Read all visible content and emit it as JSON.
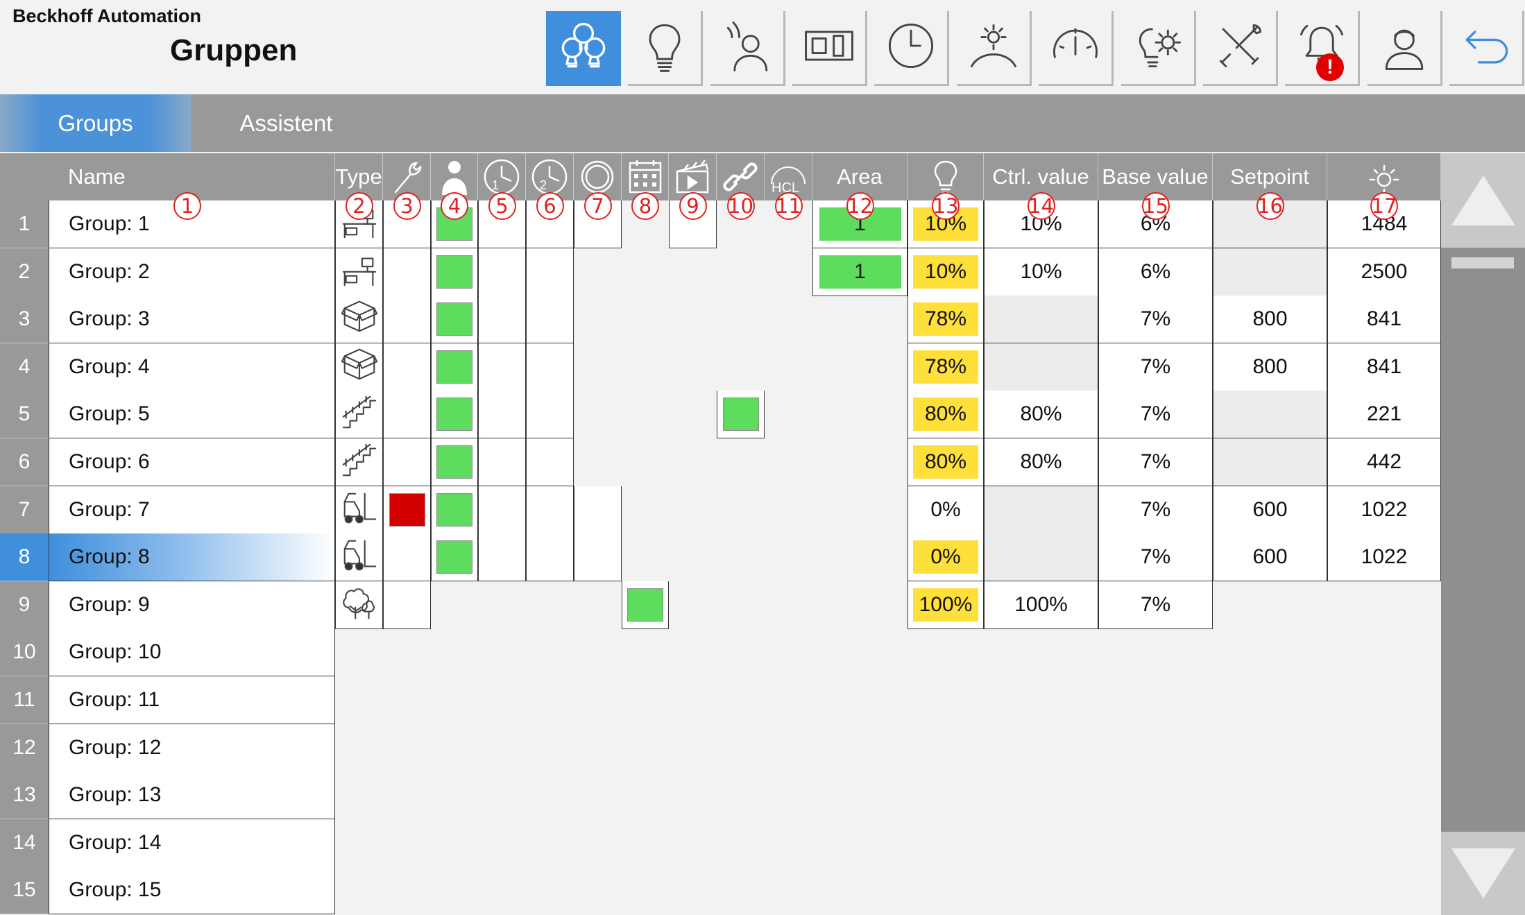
{
  "header": {
    "brand": "Beckhoff Automation",
    "title": "Gruppen"
  },
  "toolbar": [
    {
      "icon": "groups-bulbs-icon",
      "active": true
    },
    {
      "icon": "bulb-icon"
    },
    {
      "icon": "presence-person-icon"
    },
    {
      "icon": "switch-panel-icon"
    },
    {
      "icon": "clock-icon"
    },
    {
      "icon": "daylight-icon"
    },
    {
      "icon": "gauge-icon"
    },
    {
      "icon": "bulb-gear-icon"
    },
    {
      "icon": "tools-icon"
    },
    {
      "icon": "alarm-bell-icon",
      "alert": "!"
    },
    {
      "icon": "user-icon"
    },
    {
      "icon": "back-arrow-icon"
    }
  ],
  "tabs": [
    {
      "label": "Groups",
      "active": true
    },
    {
      "label": "Assistent"
    }
  ],
  "columns": {
    "name": "Name",
    "type": "Type",
    "hcl": "HCL",
    "area": "Area",
    "ctrl": "Ctrl. value",
    "base": "Base value",
    "setpoint": "Setpoint"
  },
  "column_badges": [
    "1",
    "2",
    "3",
    "4",
    "5",
    "6",
    "7",
    "8",
    "9",
    "10",
    "11",
    "12",
    "13",
    "14",
    "15",
    "16",
    "17"
  ],
  "rows": [
    {
      "num": "1",
      "name": "Group: 1",
      "type": "desk-icon",
      "area": "1",
      "bulb": "10%",
      "ctrl": "10%",
      "base": "6%",
      "setpoint": "",
      "lux": "1484"
    },
    {
      "num": "2",
      "name": "Group: 2",
      "type": "desk-icon",
      "area": "1",
      "bulb": "10%",
      "ctrl": "10%",
      "base": "6%",
      "setpoint": "",
      "lux": "2500"
    },
    {
      "num": "3",
      "name": "Group: 3",
      "type": "box-icon",
      "area": "",
      "bulb": "78%",
      "ctrl": "",
      "base": "7%",
      "setpoint": "800",
      "lux": "841"
    },
    {
      "num": "4",
      "name": "Group: 4",
      "type": "box-icon",
      "area": "",
      "bulb": "78%",
      "ctrl": "",
      "base": "7%",
      "setpoint": "800",
      "lux": "841"
    },
    {
      "num": "5",
      "name": "Group: 5",
      "type": "stairs-icon",
      "area": "",
      "bulb": "80%",
      "ctrl": "80%",
      "base": "7%",
      "setpoint": "",
      "lux": "221"
    },
    {
      "num": "6",
      "name": "Group: 6",
      "type": "stairs-icon",
      "area": "",
      "bulb": "80%",
      "ctrl": "80%",
      "base": "7%",
      "setpoint": "",
      "lux": "442"
    },
    {
      "num": "7",
      "name": "Group: 7",
      "type": "forklift-icon",
      "area": "",
      "bulb": "0%",
      "ctrl": "",
      "base": "7%",
      "setpoint": "600",
      "lux": "1022"
    },
    {
      "num": "8",
      "name": "Group: 8",
      "type": "forklift-icon",
      "area": "",
      "bulb": "0%",
      "ctrl": "",
      "base": "7%",
      "setpoint": "600",
      "lux": "1022",
      "selected": true
    },
    {
      "num": "9",
      "name": "Group: 9",
      "type": "tree-icon",
      "area": "",
      "bulb": "100%",
      "ctrl": "100%",
      "base": "7%",
      "setpoint": "",
      "lux": ""
    },
    {
      "num": "10",
      "name": "Group: 10"
    },
    {
      "num": "11",
      "name": "Group: 11"
    },
    {
      "num": "12",
      "name": "Group: 12"
    },
    {
      "num": "13",
      "name": "Group: 13"
    },
    {
      "num": "14",
      "name": "Group: 14"
    },
    {
      "num": "15",
      "name": "Group: 15"
    }
  ],
  "colors": {
    "accent": "#3f8fdc",
    "header_gray": "#999999",
    "status_ok": "#5edc5e",
    "status_error": "#d40000",
    "value_highlight": "#ffdf3a",
    "badge_red": "#e02020"
  }
}
